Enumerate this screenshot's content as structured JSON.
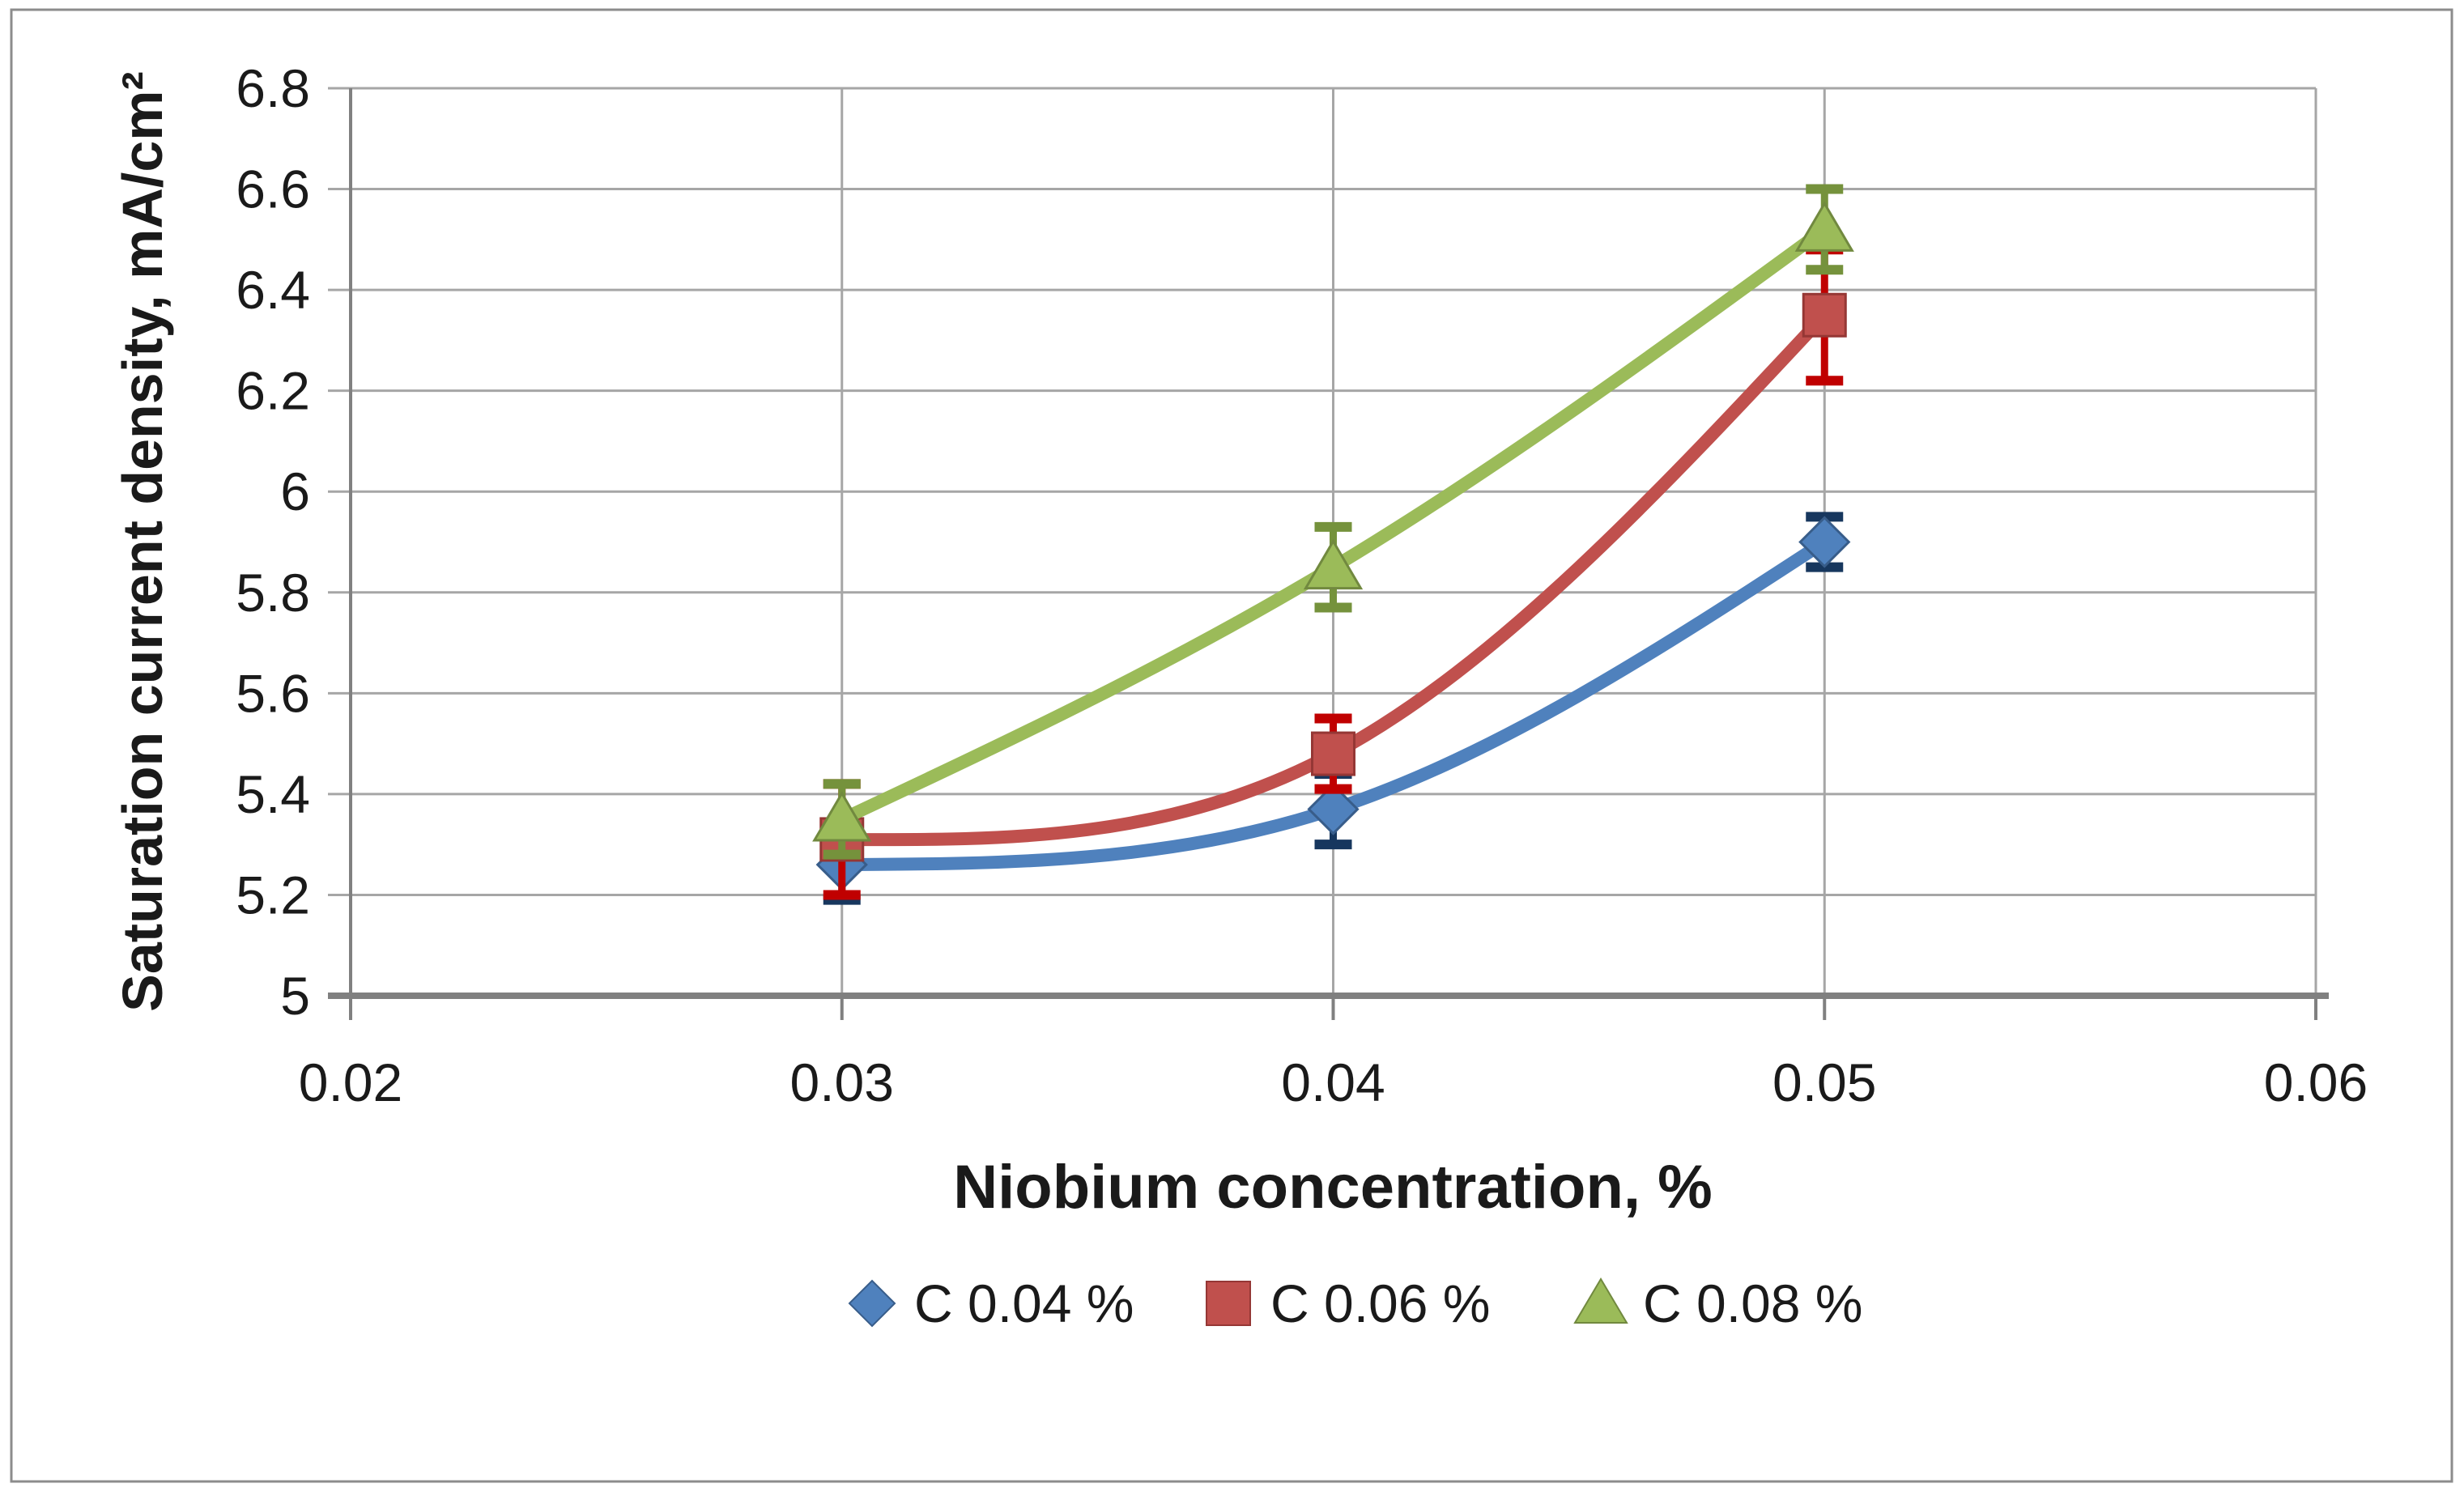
{
  "chart_data": {
    "type": "line",
    "title": "",
    "xlabel": "Niobium concentration, %",
    "ylabel": "Saturation current density, mA/cm²",
    "xlim": [
      0.02,
      0.06
    ],
    "ylim": [
      5.0,
      6.8
    ],
    "xticks": [
      "0.02",
      "0.03",
      "0.04",
      "0.05",
      "0.06"
    ],
    "yticks": [
      "5",
      "5.2",
      "5.4",
      "5.6",
      "5.8",
      "6",
      "6.2",
      "6.4",
      "6.6",
      "6.8"
    ],
    "grid": true,
    "legend_position": "bottom-center",
    "line_style": "smooth",
    "x": [
      0.03,
      0.04,
      0.05
    ],
    "series": [
      {
        "name": "C 0.04 %",
        "marker": "diamond",
        "color": "#4F81BD",
        "edge_color": "#385D8A",
        "error_color": "#17375E",
        "values": [
          5.26,
          5.37,
          5.9
        ],
        "errors": [
          0.07,
          0.07,
          0.05
        ]
      },
      {
        "name": "C 0.06 %",
        "marker": "square",
        "color": "#C0504D",
        "edge_color": "#953735",
        "error_color": "#C00000",
        "values": [
          5.31,
          5.48,
          6.35
        ],
        "errors": [
          0.11,
          0.07,
          0.13
        ]
      },
      {
        "name": "C 0.08 %",
        "marker": "triangle",
        "color": "#9BBB59",
        "edge_color": "#71893F",
        "error_color": "#75923C",
        "values": [
          5.35,
          5.85,
          6.52
        ],
        "errors": [
          0.07,
          0.08,
          0.08
        ]
      }
    ]
  },
  "frame": {
    "background": "#FFFFFF",
    "border_color": "#8C8C8C",
    "grid_color": "#A6A6A6",
    "axis_color": "#808080",
    "text_color": "#1A1A1A"
  }
}
